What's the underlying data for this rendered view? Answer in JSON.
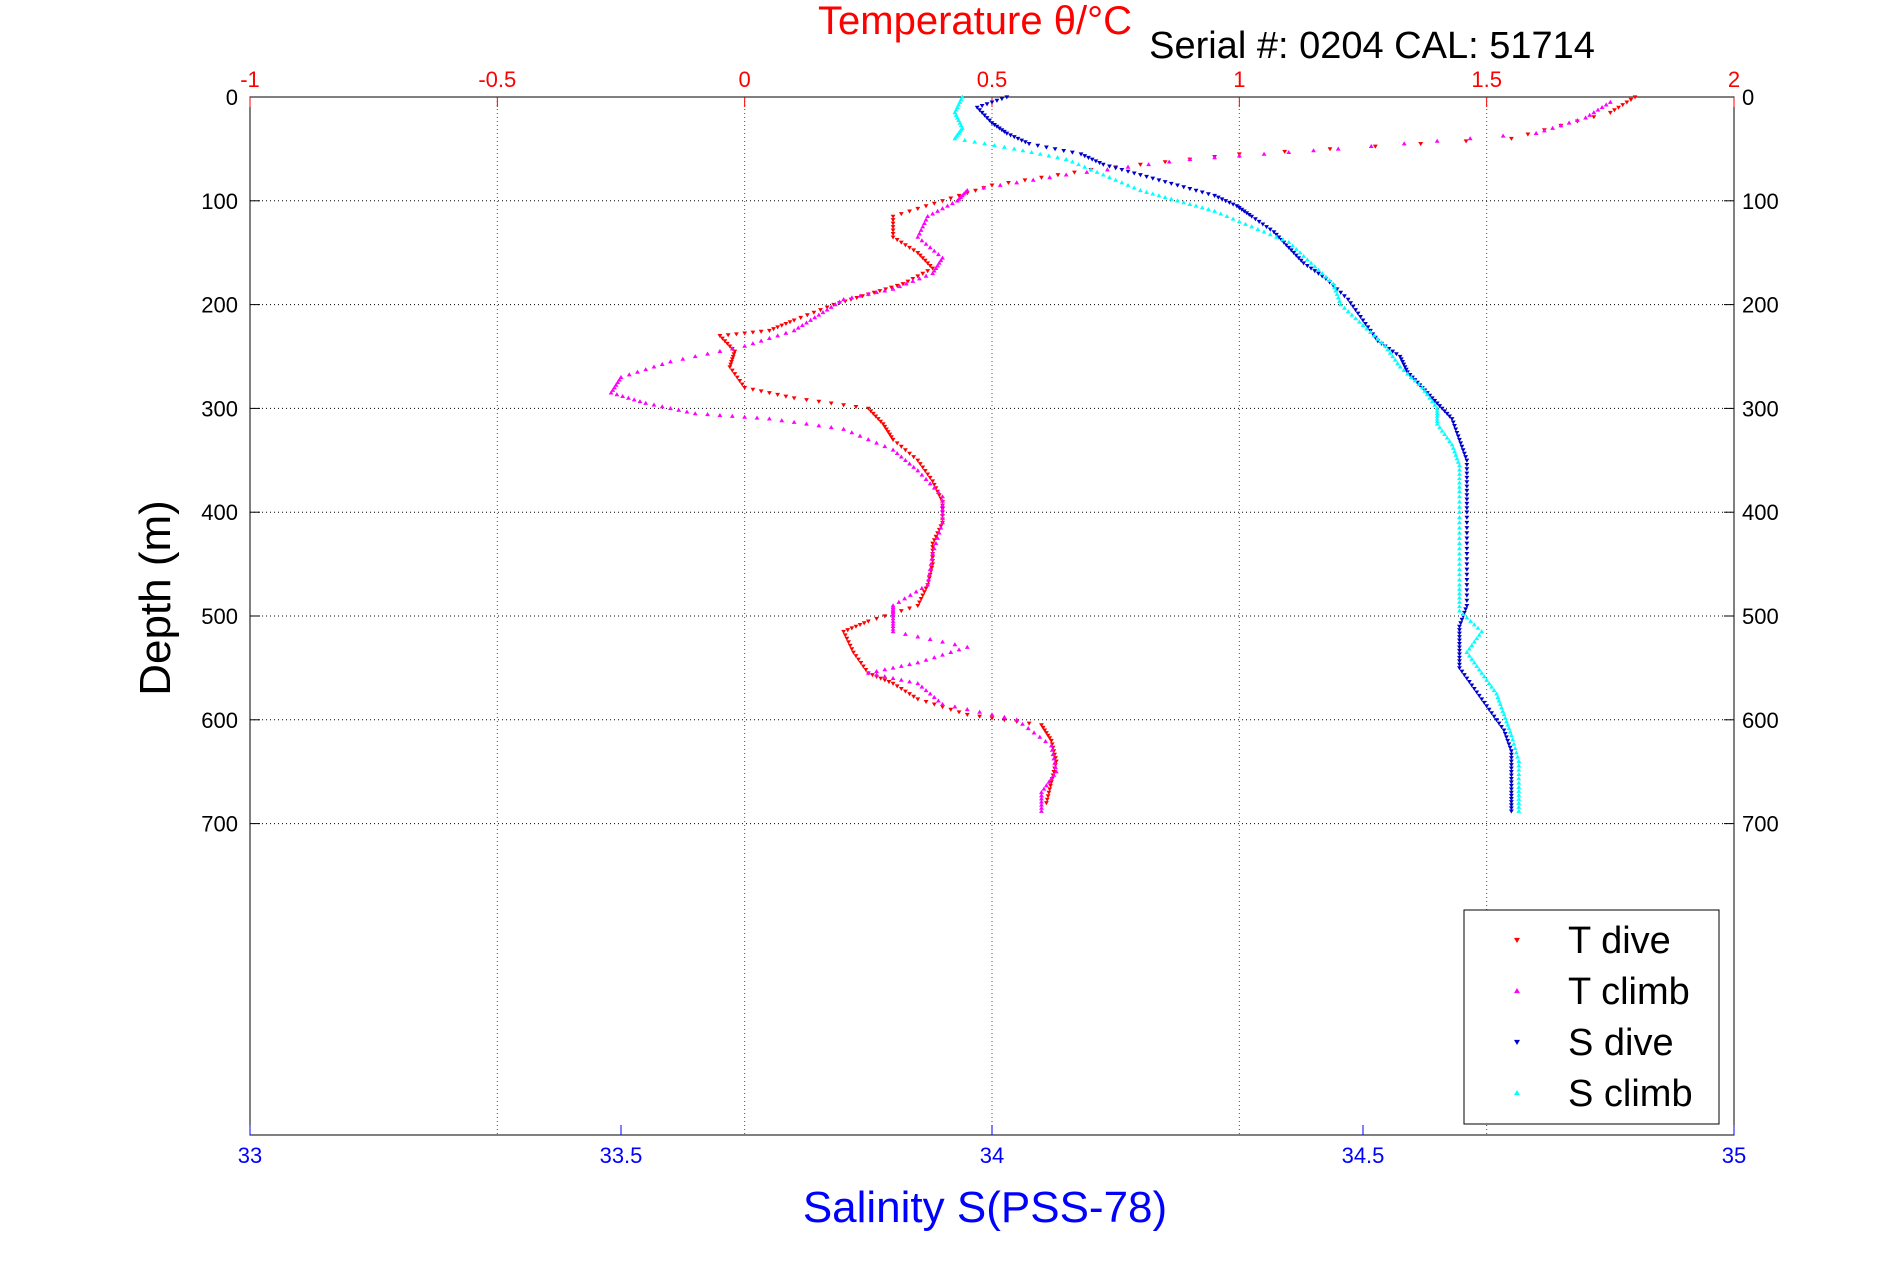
{
  "header": {
    "top_title": "Temperature θ/°C",
    "serial_label": "Serial #: 0204  CAL: 51714"
  },
  "chart_data": {
    "type": "scatter",
    "title": "Temperature θ/°C",
    "subtitle": "Serial #: 0204  CAL: 51714",
    "ylabel": "Depth (m)",
    "xlabel_top": "Temperature θ/°C",
    "xlabel_bottom": "Salinity S(PSS-78)",
    "ylim": [
      0,
      1000
    ],
    "y_reversed": true,
    "y_ticks": [
      0,
      100,
      200,
      300,
      400,
      500,
      600,
      700
    ],
    "x_top": {
      "range": [
        -1,
        2
      ],
      "ticks": [
        "-1",
        "-0.5",
        "0",
        "0.5",
        "1",
        "1.5",
        "2"
      ],
      "tick_values": [
        -1,
        -0.5,
        0,
        0.5,
        1,
        1.5,
        2
      ]
    },
    "x_bottom": {
      "range": [
        33,
        35
      ],
      "ticks": [
        "33",
        "33.5",
        "34",
        "34.5",
        "35"
      ],
      "tick_values": [
        33,
        33.5,
        34,
        34.5,
        35
      ]
    },
    "grid": true,
    "legend_position": "bottom-right",
    "series": [
      {
        "name": "T dive",
        "axis": "top",
        "color": "#ff0000",
        "marker": "triangle-down",
        "points": [
          [
            1.8,
            0
          ],
          [
            1.75,
            15
          ],
          [
            1.55,
            40
          ],
          [
            1.0,
            55
          ],
          [
            0.7,
            70
          ],
          [
            0.5,
            85
          ],
          [
            0.4,
            100
          ],
          [
            0.3,
            115
          ],
          [
            0.3,
            135
          ],
          [
            0.35,
            150
          ],
          [
            0.38,
            165
          ],
          [
            0.32,
            180
          ],
          [
            0.25,
            190
          ],
          [
            0.18,
            200
          ],
          [
            0.1,
            215
          ],
          [
            0.05,
            225
          ],
          [
            -0.05,
            230
          ],
          [
            -0.02,
            245
          ],
          [
            -0.03,
            260
          ],
          [
            0.0,
            280
          ],
          [
            0.1,
            290
          ],
          [
            0.25,
            300
          ],
          [
            0.28,
            315
          ],
          [
            0.3,
            330
          ],
          [
            0.35,
            350
          ],
          [
            0.38,
            370
          ],
          [
            0.4,
            390
          ],
          [
            0.4,
            410
          ],
          [
            0.38,
            430
          ],
          [
            0.38,
            450
          ],
          [
            0.37,
            470
          ],
          [
            0.35,
            490
          ],
          [
            0.25,
            505
          ],
          [
            0.2,
            515
          ],
          [
            0.22,
            535
          ],
          [
            0.25,
            555
          ],
          [
            0.3,
            565
          ],
          [
            0.35,
            580
          ],
          [
            0.45,
            595
          ],
          [
            0.6,
            605
          ],
          [
            0.62,
            620
          ],
          [
            0.63,
            640
          ],
          [
            0.62,
            660
          ],
          [
            0.61,
            680
          ]
        ]
      },
      {
        "name": "T climb",
        "axis": "top",
        "color": "#ff00ff",
        "marker": "triangle-up",
        "points": [
          [
            1.75,
            5
          ],
          [
            1.7,
            20
          ],
          [
            1.6,
            35
          ],
          [
            1.2,
            50
          ],
          [
            0.9,
            60
          ],
          [
            0.65,
            75
          ],
          [
            0.45,
            90
          ],
          [
            0.43,
            100
          ],
          [
            0.37,
            115
          ],
          [
            0.35,
            135
          ],
          [
            0.4,
            155
          ],
          [
            0.38,
            170
          ],
          [
            0.3,
            185
          ],
          [
            0.2,
            195
          ],
          [
            0.15,
            210
          ],
          [
            0.1,
            225
          ],
          [
            0.0,
            240
          ],
          [
            -0.15,
            255
          ],
          [
            -0.25,
            270
          ],
          [
            -0.27,
            285
          ],
          [
            -0.2,
            295
          ],
          [
            -0.1,
            305
          ],
          [
            0.05,
            310
          ],
          [
            0.2,
            320
          ],
          [
            0.3,
            340
          ],
          [
            0.35,
            360
          ],
          [
            0.4,
            385
          ],
          [
            0.4,
            410
          ],
          [
            0.38,
            440
          ],
          [
            0.37,
            470
          ],
          [
            0.3,
            490
          ],
          [
            0.3,
            500
          ],
          [
            0.3,
            515
          ],
          [
            0.45,
            530
          ],
          [
            0.35,
            545
          ],
          [
            0.25,
            555
          ],
          [
            0.35,
            565
          ],
          [
            0.4,
            585
          ],
          [
            0.55,
            600
          ],
          [
            0.62,
            625
          ],
          [
            0.63,
            650
          ],
          [
            0.6,
            670
          ],
          [
            0.6,
            688
          ]
        ]
      },
      {
        "name": "S dive",
        "axis": "bottom",
        "color": "#0000cc",
        "marker": "triangle-down",
        "points": [
          [
            34.02,
            0
          ],
          [
            33.98,
            10
          ],
          [
            34.0,
            25
          ],
          [
            34.02,
            35
          ],
          [
            34.05,
            45
          ],
          [
            34.12,
            55
          ],
          [
            34.15,
            65
          ],
          [
            34.2,
            75
          ],
          [
            34.25,
            85
          ],
          [
            34.3,
            95
          ],
          [
            34.33,
            105
          ],
          [
            34.35,
            115
          ],
          [
            34.38,
            130
          ],
          [
            34.4,
            145
          ],
          [
            34.42,
            160
          ],
          [
            34.45,
            175
          ],
          [
            34.48,
            195
          ],
          [
            34.5,
            215
          ],
          [
            34.52,
            235
          ],
          [
            34.55,
            250
          ],
          [
            34.56,
            265
          ],
          [
            34.58,
            280
          ],
          [
            34.6,
            295
          ],
          [
            34.62,
            310
          ],
          [
            34.63,
            330
          ],
          [
            34.64,
            350
          ],
          [
            34.64,
            375
          ],
          [
            34.64,
            400
          ],
          [
            34.64,
            430
          ],
          [
            34.64,
            460
          ],
          [
            34.64,
            490
          ],
          [
            34.63,
            510
          ],
          [
            34.63,
            530
          ],
          [
            34.63,
            550
          ],
          [
            34.65,
            570
          ],
          [
            34.67,
            590
          ],
          [
            34.69,
            610
          ],
          [
            34.7,
            630
          ],
          [
            34.7,
            650
          ],
          [
            34.7,
            670
          ],
          [
            34.7,
            688
          ]
        ]
      },
      {
        "name": "S climb",
        "axis": "bottom",
        "color": "#00ffff",
        "marker": "triangle-up",
        "points": [
          [
            33.96,
            0
          ],
          [
            33.95,
            15
          ],
          [
            33.96,
            30
          ],
          [
            33.95,
            40
          ],
          [
            34.03,
            50
          ],
          [
            34.1,
            60
          ],
          [
            34.15,
            75
          ],
          [
            34.2,
            90
          ],
          [
            34.25,
            100
          ],
          [
            34.3,
            110
          ],
          [
            34.35,
            125
          ],
          [
            34.4,
            140
          ],
          [
            34.43,
            160
          ],
          [
            34.46,
            180
          ],
          [
            34.47,
            200
          ],
          [
            34.5,
            220
          ],
          [
            34.53,
            240
          ],
          [
            34.55,
            260
          ],
          [
            34.58,
            280
          ],
          [
            34.6,
            300
          ],
          [
            34.6,
            315
          ],
          [
            34.62,
            335
          ],
          [
            34.63,
            355
          ],
          [
            34.63,
            380
          ],
          [
            34.63,
            410
          ],
          [
            34.63,
            440
          ],
          [
            34.63,
            470
          ],
          [
            34.63,
            495
          ],
          [
            34.66,
            515
          ],
          [
            34.64,
            535
          ],
          [
            34.66,
            555
          ],
          [
            34.68,
            575
          ],
          [
            34.69,
            595
          ],
          [
            34.7,
            615
          ],
          [
            34.71,
            640
          ],
          [
            34.71,
            665
          ],
          [
            34.71,
            688
          ]
        ]
      }
    ]
  }
}
